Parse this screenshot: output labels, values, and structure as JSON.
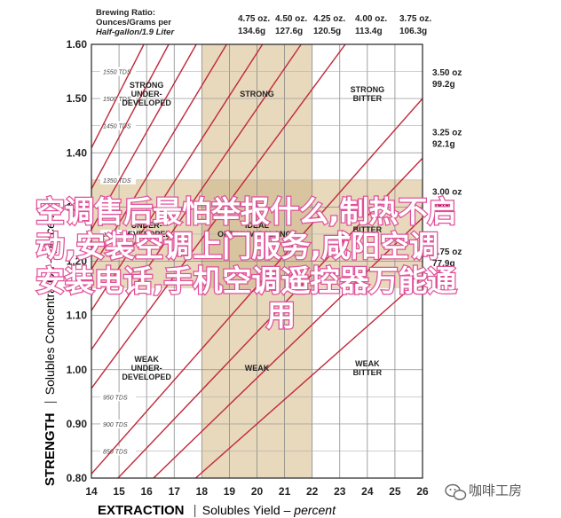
{
  "chart_data": {
    "type": "line",
    "xlabel": {
      "main": "EXTRACTION",
      "rest": "Solubles Yield – ",
      "unit": "percent"
    },
    "ylabel": {
      "main": "STRENGTH",
      "rest": "Solubles Concentration – ",
      "unit": "percent"
    },
    "xlim": [
      14,
      26
    ],
    "ylim": [
      0.8,
      1.6
    ],
    "x_ticks": [
      "14",
      "15",
      "16",
      "17",
      "18",
      "19",
      "20",
      "21",
      "22",
      "23",
      "24",
      "25",
      "26"
    ],
    "y_ticks": [
      "0.80",
      "0.90",
      "1.00",
      "1.10",
      "1.20",
      "1.30",
      "1.40",
      "1.50",
      "1.60"
    ],
    "ideal_extraction": [
      18,
      22
    ],
    "ideal_strength": [
      1.15,
      1.35
    ],
    "tds_lines": [
      {
        "label": "1550 TDS",
        "y": 1.55
      },
      {
        "label": "1500 TDS",
        "y": 1.5
      },
      {
        "label": "1450 TDS",
        "y": 1.45
      },
      {
        "label": "1350 TDS",
        "y": 1.35
      },
      {
        "label": "1250 TDS",
        "y": 1.25
      },
      {
        "label": "950 TDS",
        "y": 0.95
      },
      {
        "label": "900 TDS",
        "y": 0.9
      },
      {
        "label": "850 TDS",
        "y": 0.85
      }
    ],
    "ratio_header": {
      "row1": "Brewing Ratio:",
      "row2": "Ounces/Grams per",
      "row3": "Half-gallon/1.9 Liter"
    },
    "ratios_top": [
      {
        "oz": "4.75 oz.",
        "g": "134.6g",
        "extraction_at_top": 15.9
      },
      {
        "oz": "4.50 oz.",
        "g": "127.6g",
        "extraction_at_top": 16.8
      },
      {
        "oz": "4.25 oz.",
        "g": "120.5g",
        "extraction_at_top": 17.8
      },
      {
        "oz": "4.00 oz.",
        "g": "113.4g",
        "extraction_at_top": 18.9
      },
      {
        "oz": "3.75 oz.",
        "g": "106.3g",
        "extraction_at_top": 20.2
      }
    ],
    "ratios_right": [
      {
        "oz": "3.50 oz",
        "g": "99.2g",
        "strength_at_right": 1.5
      },
      {
        "oz": "3.25 oz",
        "g": "92.1g",
        "strength_at_right": 1.39
      },
      {
        "oz": "3.00 oz",
        "g": "85.0g",
        "strength_at_right": 1.28
      },
      {
        "oz": "2.75 oz",
        "g": "77.9g",
        "strength_at_right": 1.17
      }
    ],
    "extra_lines": [
      {
        "extraction_at_top": 21.6
      },
      {
        "extraction_at_top": 23.2
      }
    ],
    "zones": [
      {
        "label": [
          "STRONG",
          "UNDER-",
          "DEVELOPED"
        ],
        "x": 16.0,
        "y": 1.5
      },
      {
        "label": [
          "STRONG"
        ],
        "x": 20.0,
        "y": 1.5
      },
      {
        "label": [
          "STRONG",
          "BITTER"
        ],
        "x": 24.0,
        "y": 1.5
      },
      {
        "label": [
          "UNDER-",
          "DEVELOPED"
        ],
        "x": 16.0,
        "y": 1.25
      },
      {
        "label": [
          "IDEAL",
          "OPTIMUM BALANCE"
        ],
        "x": 20.0,
        "y": 1.25
      },
      {
        "label": [
          "BITTER"
        ],
        "x": 24.0,
        "y": 1.25
      },
      {
        "label": [
          "WEAK",
          "UNDER-",
          "DEVELOPED"
        ],
        "x": 16.0,
        "y": 0.995
      },
      {
        "label": [
          "WEAK"
        ],
        "x": 20.0,
        "y": 0.995
      },
      {
        "label": [
          "WEAK",
          "BITTER"
        ],
        "x": 24.0,
        "y": 0.995
      }
    ],
    "colors": {
      "band": "#e8d8bc",
      "center": "#d8c59f",
      "line": "#c0283a",
      "grid": "#8a8a8a"
    }
  },
  "overlay_text": [
    "空调售后最怕举报什么,制热不启",
    "动,安装空调上门服务,咸阳空调",
    "安装电话,手机空调遥控器万能通",
    "用"
  ],
  "watermark": {
    "icon": "wechat-icon",
    "text": "咖啡工房"
  }
}
